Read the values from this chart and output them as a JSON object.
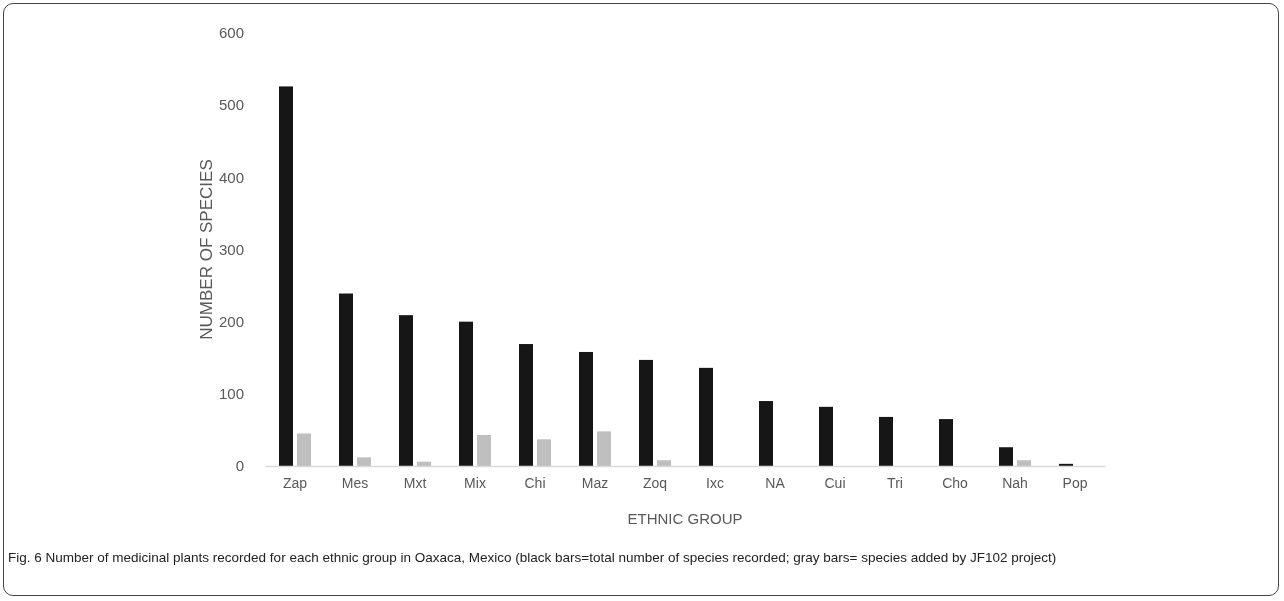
{
  "chart_data": {
    "type": "bar",
    "xlabel": "ETHNIC GROUP",
    "ylabel": "NUMBER OF SPECIES",
    "categories": [
      "Zap",
      "Mes",
      "Mxt",
      "Mix",
      "Chi",
      "Maz",
      "Zoq",
      "Ixc",
      "NA",
      "Cui",
      "Tri",
      "Cho",
      "Nah",
      "Pop"
    ],
    "series": [
      {
        "color": "#161616",
        "values": [
          526,
          239,
          209,
          200,
          169,
          158,
          147,
          136,
          90,
          82,
          68,
          65,
          26,
          3
        ]
      },
      {
        "color": "#bfbfbf",
        "values": [
          45,
          12,
          6,
          43,
          37,
          48,
          8,
          0,
          0,
          0,
          0,
          0,
          8,
          0
        ]
      }
    ],
    "ylim": [
      0,
      600
    ],
    "yticks": [
      0,
      100,
      200,
      300,
      400,
      500,
      600
    ],
    "annotations": [
      "Fig. 6 Number of medicinal plants recorded for each ethnic group in Oaxaca, Mexico (black bars=total number of species recorded; gray bars= species added by JF102 project)"
    ]
  }
}
